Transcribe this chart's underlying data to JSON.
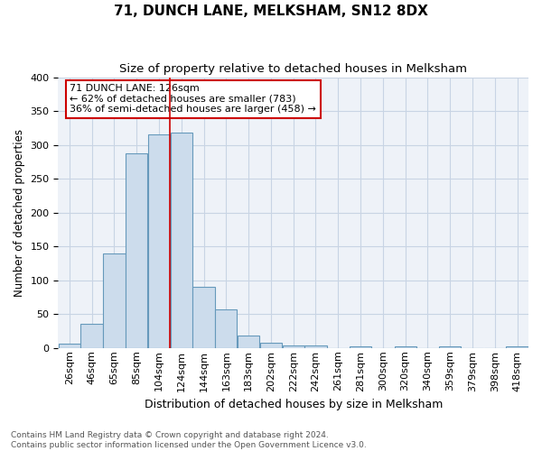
{
  "title": "71, DUNCH LANE, MELKSHAM, SN12 8DX",
  "subtitle": "Size of property relative to detached houses in Melksham",
  "xlabel": "Distribution of detached houses by size in Melksham",
  "ylabel": "Number of detached properties",
  "bin_labels": [
    "26sqm",
    "46sqm",
    "65sqm",
    "85sqm",
    "104sqm",
    "124sqm",
    "144sqm",
    "163sqm",
    "183sqm",
    "202sqm",
    "222sqm",
    "242sqm",
    "261sqm",
    "281sqm",
    "300sqm",
    "320sqm",
    "340sqm",
    "359sqm",
    "379sqm",
    "398sqm",
    "418sqm"
  ],
  "bar_heights": [
    7,
    35,
    140,
    287,
    315,
    318,
    90,
    57,
    19,
    8,
    4,
    4,
    0,
    3,
    0,
    3,
    0,
    3,
    0,
    0,
    3
  ],
  "bar_color": "#ccdcec",
  "bar_edge_color": "#6699bb",
  "grid_color": "#c8d4e4",
  "background_color": "#eef2f8",
  "annotation_line1": "71 DUNCH LANE: 126sqm",
  "annotation_line2": "← 62% of detached houses are smaller (783)",
  "annotation_line3": "36% of semi-detached houses are larger (458) →",
  "annotation_box_color": "white",
  "annotation_box_edge_color": "#cc0000",
  "vline_color": "#cc0000",
  "vline_bar_index": 5,
  "footer_text": "Contains HM Land Registry data © Crown copyright and database right 2024.\nContains public sector information licensed under the Open Government Licence v3.0.",
  "ylim": [
    0,
    400
  ],
  "yticks": [
    0,
    50,
    100,
    150,
    200,
    250,
    300,
    350,
    400
  ],
  "title_fontsize": 11,
  "subtitle_fontsize": 9.5,
  "xlabel_fontsize": 9,
  "ylabel_fontsize": 8.5,
  "tick_fontsize": 8,
  "footer_fontsize": 6.5,
  "annotation_fontsize": 8
}
